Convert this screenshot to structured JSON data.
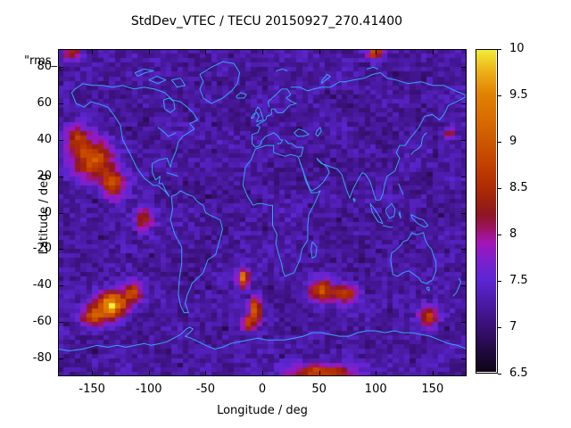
{
  "title": "StdDev_VTEC / TECU 20150927_270.41400",
  "overlay_text": "\"rms_",
  "axes": {
    "xlabel": "Longitude / deg",
    "ylabel": "Latitude / deg",
    "xticks": [
      -150,
      -100,
      -50,
      0,
      50,
      100,
      150
    ],
    "yticks": [
      80,
      60,
      40,
      20,
      0,
      -20,
      -40,
      -60,
      -80
    ],
    "xlim": [
      -180,
      180
    ],
    "ylim": [
      -90,
      90
    ]
  },
  "colorbar": {
    "min": 6.5,
    "max": 10,
    "ticks": [
      6.5,
      7,
      7.5,
      8,
      8.5,
      9,
      9.5,
      10
    ]
  },
  "chart_data": {
    "type": "heatmap",
    "title": "StdDev_VTEC / TECU 20150927_270.41400",
    "xlabel": "Longitude / deg",
    "ylabel": "Latitude / deg",
    "xlim": [
      -180,
      180
    ],
    "ylim": [
      -90,
      90
    ],
    "value_range": [
      6.5,
      10
    ],
    "grid": {
      "lon_step_deg": 5,
      "lat_step_deg": 2.5
    },
    "background_level": 7.22,
    "noise_amplitude": 0.21,
    "overlay": "world coastlines",
    "coastline_color": "#36a4f4",
    "border_color": "#000000",
    "palette_stops": [
      [
        6.5,
        "#0d0517"
      ],
      [
        6.75,
        "#250a46"
      ],
      [
        7.0,
        "#3a1078"
      ],
      [
        7.25,
        "#4b1ba6"
      ],
      [
        7.5,
        "#5d26d4"
      ],
      [
        7.7,
        "#7c20cc"
      ],
      [
        7.9,
        "#a315b8"
      ],
      [
        8.05,
        "#9c1464"
      ],
      [
        8.2,
        "#8e1523"
      ],
      [
        8.35,
        "#9c2210"
      ],
      [
        8.5,
        "#ad2c06"
      ],
      [
        8.7,
        "#c03c00"
      ],
      [
        9.0,
        "#cd5800"
      ],
      [
        9.25,
        "#d96d00"
      ],
      [
        9.5,
        "#e18000"
      ],
      [
        9.75,
        "#ecae15"
      ],
      [
        10,
        "#f2ee3a"
      ]
    ],
    "hotspots": [
      {
        "lon": -150,
        "lat": 29,
        "peak": 9.0,
        "sigma_lon": 12,
        "sigma_lat": 7
      },
      {
        "lon": -163,
        "lat": 41,
        "peak": 8.4,
        "sigma_lon": 8,
        "sigma_lat": 5
      },
      {
        "lon": -131,
        "lat": 16,
        "peak": 8.7,
        "sigma_lon": 8,
        "sigma_lat": 6
      },
      {
        "lon": -104,
        "lat": -4,
        "peak": 8.4,
        "sigma_lon": 6,
        "sigma_lat": 5
      },
      {
        "lon": -133,
        "lat": -51,
        "peak": 9.9,
        "sigma_lon": 9,
        "sigma_lat": 5
      },
      {
        "lon": -150,
        "lat": -57,
        "peak": 8.9,
        "sigma_lon": 7,
        "sigma_lat": 4
      },
      {
        "lon": -114,
        "lat": -44,
        "peak": 8.7,
        "sigma_lon": 6,
        "sigma_lat": 4
      },
      {
        "lon": -17,
        "lat": -36,
        "peak": 9.5,
        "sigma_lon": 3.5,
        "sigma_lat": 3.5
      },
      {
        "lon": -6,
        "lat": -53,
        "peak": 9.0,
        "sigma_lon": 4,
        "sigma_lat": 5
      },
      {
        "lon": -13,
        "lat": -61,
        "peak": 8.7,
        "sigma_lon": 4,
        "sigma_lat": 3
      },
      {
        "lon": 52,
        "lat": -43,
        "peak": 8.9,
        "sigma_lon": 8,
        "sigma_lat": 4.5
      },
      {
        "lon": 74,
        "lat": -45,
        "peak": 8.7,
        "sigma_lon": 7,
        "sigma_lat": 4
      },
      {
        "lon": 146,
        "lat": -57,
        "peak": 8.7,
        "sigma_lon": 6,
        "sigma_lat": 4
      },
      {
        "lon": 50,
        "lat": -88,
        "peak": 8.9,
        "sigma_lon": 20,
        "sigma_lat": 3
      },
      {
        "lon": -168,
        "lat": 88,
        "peak": 8.6,
        "sigma_lon": 6,
        "sigma_lat": 3
      },
      {
        "lon": 99,
        "lat": 88,
        "peak": 8.7,
        "sigma_lon": 5,
        "sigma_lat": 3
      },
      {
        "lon": 165,
        "lat": 44,
        "peak": 8.3,
        "sigma_lon": 3,
        "sigma_lat": 2.5
      }
    ]
  }
}
